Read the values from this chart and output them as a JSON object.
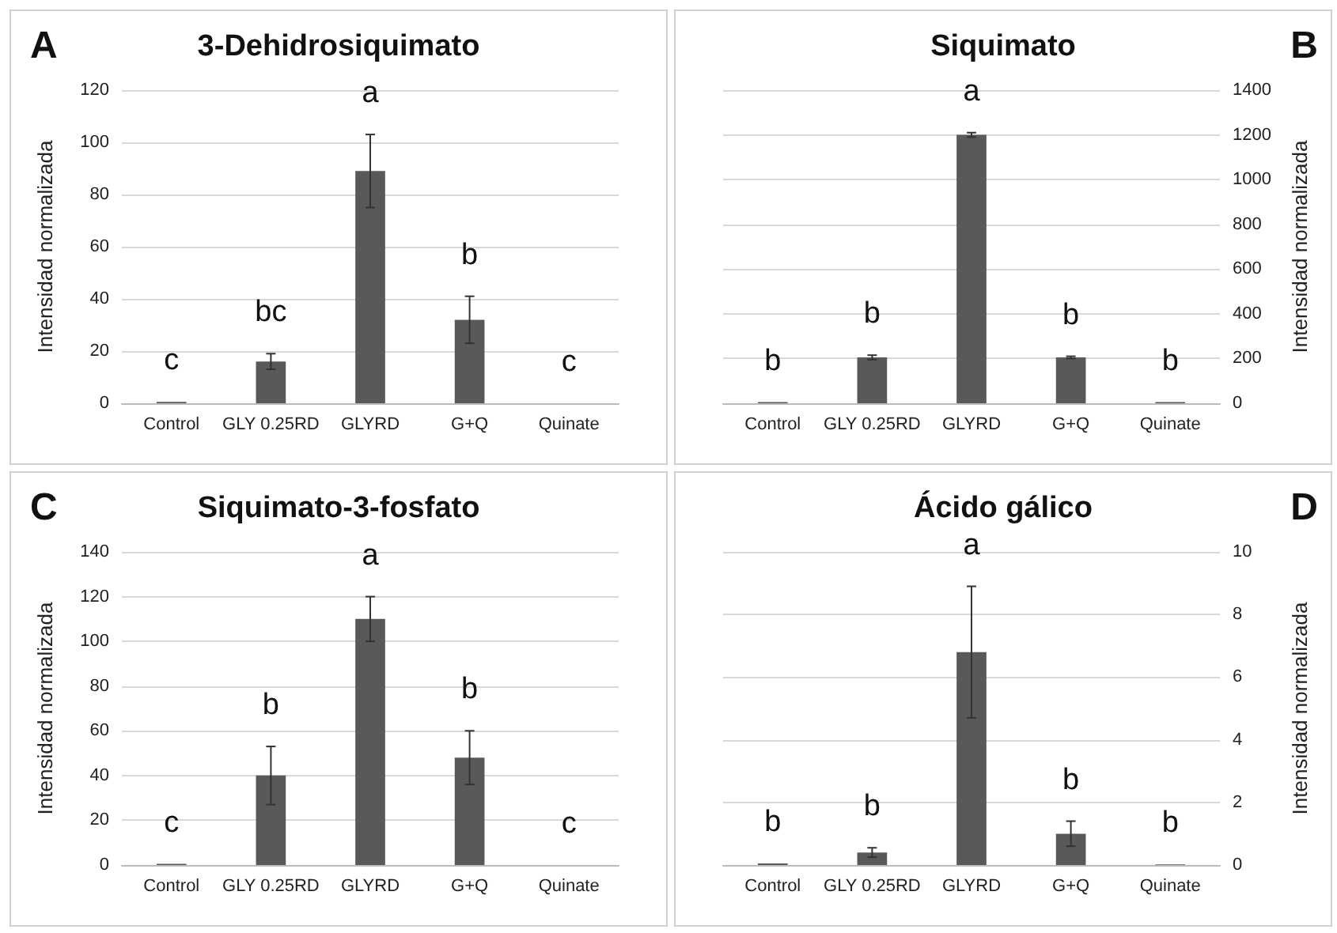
{
  "chart_data": [
    {
      "type": "bar",
      "title": "3-Dehidrosiquimato",
      "ylabel": "Intensidad normalizada",
      "categories": [
        "Control",
        "GLY 0.25RD",
        "GLYRD",
        "G+Q",
        "Quinate"
      ],
      "series": [
        {
          "color": "#595959",
          "values": [
            0.5,
            16,
            89,
            32,
            0
          ],
          "errors": [
            null,
            3,
            14,
            9,
            null
          ]
        }
      ],
      "ylim": [
        0,
        120
      ],
      "yticks": [
        0,
        20,
        40,
        60,
        80,
        100,
        120
      ],
      "grid": "y",
      "annotations": [
        "A",
        "c",
        "bc",
        "a",
        "b",
        "c"
      ]
    },
    {
      "type": "bar",
      "title": "Siquimato",
      "y2label": "Intensidad normalizada",
      "categories": [
        "Control",
        "GLY 0.25RD",
        "GLYRD",
        "G+Q",
        "Quinate"
      ],
      "series": [
        {
          "color": "#595959",
          "axis": "y2",
          "values": [
            5,
            205,
            1200,
            205,
            5
          ],
          "errors": [
            null,
            10,
            10,
            5,
            null
          ]
        }
      ],
      "y2lim": [
        0,
        1400
      ],
      "y2ticks": [
        0,
        200,
        400,
        600,
        800,
        1000,
        1200,
        1400
      ],
      "grid": "y",
      "annotations": [
        "B",
        "b",
        "b",
        "a",
        "b",
        "b"
      ]
    },
    {
      "type": "bar",
      "title": "Siquimato-3-fosfato",
      "ylabel": "Intensidad normalizada",
      "categories": [
        "Control",
        "GLY 0.25RD",
        "GLYRD",
        "G+Q",
        "Quinate"
      ],
      "series": [
        {
          "color": "#595959",
          "values": [
            0.5,
            40,
            110,
            48,
            0
          ],
          "errors": [
            null,
            13,
            10,
            12,
            null
          ]
        }
      ],
      "ylim": [
        0,
        140
      ],
      "yticks": [
        0,
        20,
        40,
        60,
        80,
        100,
        120,
        140
      ],
      "grid": "y",
      "annotations": [
        "C",
        "c",
        "b",
        "a",
        "b",
        "c"
      ]
    },
    {
      "type": "bar",
      "title": "Ácido gálico",
      "y2label": "Intensidad normalizada",
      "categories": [
        "Control",
        "GLY 0.25RD",
        "GLYRD",
        "G+Q",
        "Quinate"
      ],
      "series": [
        {
          "color": "#595959",
          "axis": "y2",
          "values": [
            0.05,
            0.4,
            6.8,
            1,
            0.02
          ],
          "errors": [
            null,
            0.15,
            2.1,
            0.4,
            null
          ]
        }
      ],
      "y2lim": [
        0,
        10
      ],
      "y2ticks": [
        0,
        2,
        4,
        6,
        8,
        10
      ],
      "grid": "y",
      "annotations": [
        "D",
        "b",
        "b",
        "a",
        "b",
        "b"
      ]
    }
  ]
}
